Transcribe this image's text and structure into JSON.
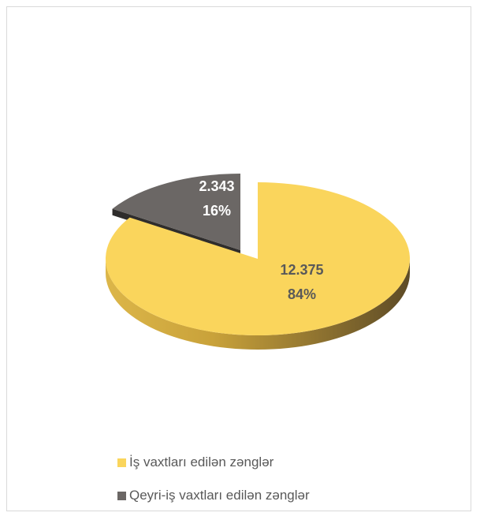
{
  "chart_data": {
    "type": "pie",
    "title": "",
    "categories": [
      "İş vaxtları edilən zənglər",
      "Qeyri-iş vaxtları edilən zənglər"
    ],
    "values": [
      12375,
      2343
    ],
    "value_labels": [
      "12.375",
      "2.343"
    ],
    "percent_labels": [
      "84%",
      "16%"
    ],
    "colors": [
      "#FAD55C",
      "#6B6765"
    ],
    "legend_position": "bottom",
    "style": "3d-exploded"
  }
}
